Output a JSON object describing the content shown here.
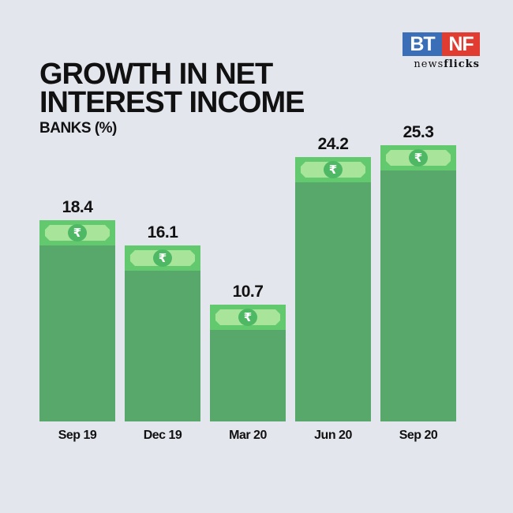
{
  "header": {
    "title_line1": "GROWTH IN NET",
    "title_line2": "INTEREST INCOME",
    "subtitle": "BANKS (%)"
  },
  "logo": {
    "left": "BT",
    "right": "NF",
    "tagline_regular": "news",
    "tagline_bold": "flicks",
    "colors": {
      "bt": "#3a6fb8",
      "nf": "#e03c31"
    }
  },
  "icons": {
    "note": "rupee-banknote-icon",
    "symbol": "₹"
  },
  "colors": {
    "background": "#e4e6ee",
    "bar": "#57a86a",
    "note": "#62c96e",
    "note_inner": "#a8e59a"
  },
  "chart_data": {
    "type": "bar",
    "title": "GROWTH IN NET INTEREST INCOME",
    "subtitle": "BANKS (%)",
    "xlabel": "",
    "ylabel": "",
    "categories": [
      "Sep 19",
      "Dec 19",
      "Mar 20",
      "Jun 20",
      "Sep 20"
    ],
    "values": [
      18.4,
      16.1,
      10.7,
      24.2,
      25.3
    ],
    "labels": [
      "18.4",
      "16.1",
      "10.7",
      "24.2",
      "25.3"
    ],
    "grid": false,
    "legend": "none"
  }
}
